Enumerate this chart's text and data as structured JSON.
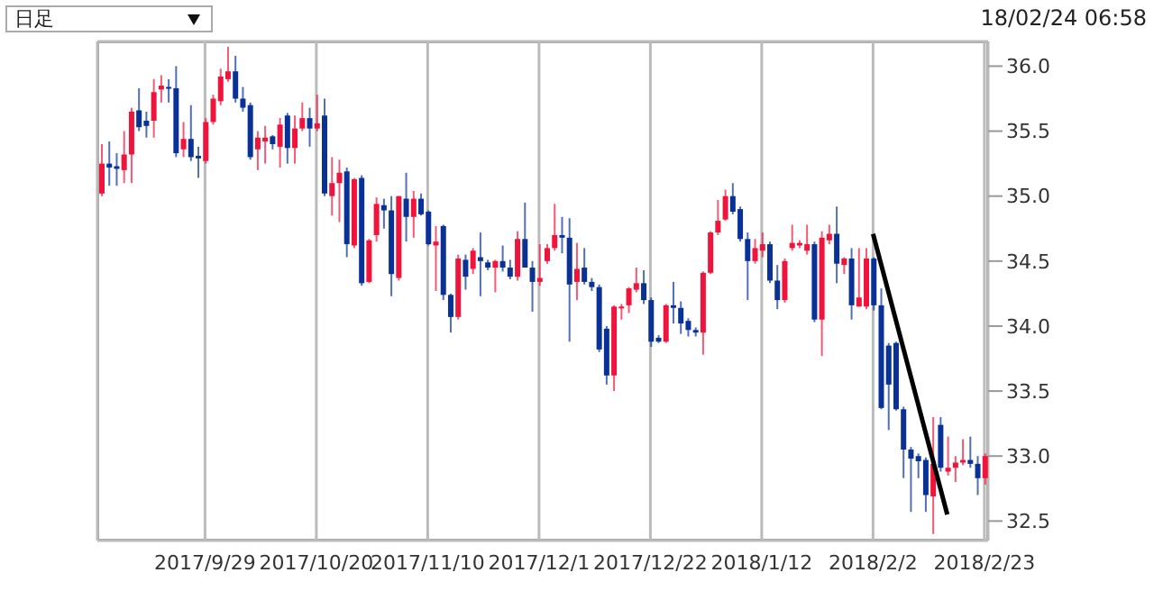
{
  "chart_data": {
    "type": "candlestick",
    "categories": [
      null,
      null,
      null,
      null,
      null,
      null,
      null,
      null,
      null,
      null,
      null,
      null,
      null,
      null,
      "2017/9/29",
      null,
      null,
      null,
      null,
      null,
      null,
      null,
      null,
      null,
      null,
      null,
      null,
      null,
      null,
      "2017/10/20",
      null,
      null,
      null,
      null,
      null,
      null,
      null,
      null,
      null,
      null,
      null,
      null,
      null,
      null,
      "2017/11/10",
      null,
      null,
      null,
      null,
      null,
      null,
      null,
      null,
      null,
      null,
      null,
      null,
      null,
      null,
      "2017/12/1",
      null,
      null,
      null,
      null,
      null,
      null,
      null,
      null,
      null,
      null,
      null,
      null,
      null,
      null,
      "2017/12/22",
      null,
      null,
      null,
      null,
      null,
      null,
      null,
      null,
      null,
      null,
      null,
      null,
      null,
      null,
      "2018/1/12",
      null,
      null,
      null,
      null,
      null,
      null,
      null,
      null,
      null,
      null,
      null,
      null,
      null,
      null,
      "2018/2/2",
      null,
      null,
      null,
      null,
      null,
      null,
      null,
      null,
      null,
      null,
      null,
      null,
      null,
      null,
      "2018/2/23"
    ],
    "ohlc": [
      [
        35.02,
        35.4,
        35.0,
        35.25
      ],
      [
        35.25,
        35.42,
        35.08,
        35.22
      ],
      [
        35.23,
        35.33,
        35.08,
        35.21
      ],
      [
        35.2,
        35.5,
        35.1,
        35.32
      ],
      [
        35.32,
        35.68,
        35.1,
        35.65
      ],
      [
        35.66,
        35.83,
        35.5,
        35.53
      ],
      [
        35.58,
        35.65,
        35.45,
        35.54
      ],
      [
        35.58,
        35.9,
        35.45,
        35.8
      ],
      [
        35.82,
        35.93,
        35.72,
        35.85
      ],
      [
        35.84,
        35.9,
        35.72,
        35.83
      ],
      [
        35.83,
        36.0,
        35.3,
        35.33
      ],
      [
        35.36,
        35.57,
        35.3,
        35.44
      ],
      [
        35.44,
        35.7,
        35.27,
        35.3
      ],
      [
        35.31,
        35.38,
        35.14,
        35.29
      ],
      [
        35.27,
        35.6,
        35.25,
        35.57
      ],
      [
        35.57,
        35.78,
        35.55,
        35.75
      ],
      [
        35.73,
        35.98,
        35.7,
        35.92
      ],
      [
        35.9,
        36.15,
        35.88,
        35.96
      ],
      [
        35.96,
        36.08,
        35.72,
        35.75
      ],
      [
        35.75,
        35.84,
        35.65,
        35.68
      ],
      [
        35.7,
        35.72,
        35.28,
        35.3
      ],
      [
        35.36,
        35.5,
        35.2,
        35.45
      ],
      [
        35.42,
        35.54,
        35.25,
        35.45
      ],
      [
        35.46,
        35.47,
        35.36,
        35.4
      ],
      [
        35.38,
        35.6,
        35.22,
        35.55
      ],
      [
        35.62,
        35.64,
        35.25,
        35.37
      ],
      [
        35.37,
        35.62,
        35.25,
        35.52
      ],
      [
        35.52,
        35.72,
        35.5,
        35.6
      ],
      [
        35.6,
        35.68,
        35.38,
        35.52
      ],
      [
        35.52,
        35.78,
        35.5,
        35.56
      ],
      [
        35.62,
        35.75,
        35.0,
        35.02
      ],
      [
        35.0,
        35.3,
        34.85,
        35.1
      ],
      [
        35.1,
        35.28,
        34.8,
        35.18
      ],
      [
        35.19,
        35.22,
        34.53,
        34.63
      ],
      [
        34.62,
        35.14,
        34.6,
        35.13
      ],
      [
        35.14,
        35.16,
        34.31,
        34.33
      ],
      [
        34.34,
        34.67,
        34.33,
        34.66
      ],
      [
        34.7,
        34.99,
        34.65,
        34.94
      ],
      [
        34.93,
        34.98,
        34.75,
        34.89
      ],
      [
        34.89,
        35.0,
        34.23,
        34.4
      ],
      [
        34.37,
        35.0,
        34.35,
        35.0
      ],
      [
        34.98,
        35.18,
        34.65,
        34.84
      ],
      [
        34.84,
        35.04,
        34.68,
        34.98
      ],
      [
        34.98,
        35.02,
        34.85,
        34.86
      ],
      [
        34.88,
        34.89,
        34.62,
        34.63
      ],
      [
        34.62,
        34.77,
        34.27,
        34.65
      ],
      [
        34.77,
        34.78,
        34.2,
        34.24
      ],
      [
        34.24,
        34.25,
        33.95,
        34.07
      ],
      [
        34.07,
        34.55,
        34.05,
        34.52
      ],
      [
        34.51,
        34.55,
        34.28,
        34.38
      ],
      [
        34.44,
        34.6,
        34.4,
        34.58
      ],
      [
        34.53,
        34.72,
        34.23,
        34.5
      ],
      [
        34.49,
        34.51,
        34.43,
        34.45
      ],
      [
        34.45,
        34.51,
        34.26,
        34.5
      ],
      [
        34.5,
        34.62,
        34.42,
        34.45
      ],
      [
        34.45,
        34.51,
        34.36,
        34.38
      ],
      [
        34.38,
        34.73,
        34.35,
        34.67
      ],
      [
        34.67,
        34.95,
        34.45,
        34.45
      ],
      [
        34.45,
        34.5,
        34.11,
        34.34
      ],
      [
        34.34,
        34.63,
        34.31,
        34.37
      ],
      [
        34.5,
        34.63,
        34.48,
        34.6
      ],
      [
        34.6,
        34.94,
        34.58,
        34.7
      ],
      [
        34.7,
        34.84,
        34.56,
        34.68
      ],
      [
        34.68,
        34.83,
        33.88,
        34.32
      ],
      [
        34.34,
        34.64,
        34.2,
        34.44
      ],
      [
        34.45,
        34.6,
        34.32,
        34.34
      ],
      [
        34.34,
        34.37,
        34.27,
        34.3
      ],
      [
        34.3,
        34.32,
        33.8,
        33.82
      ],
      [
        33.98,
        34.0,
        33.55,
        33.62
      ],
      [
        33.62,
        34.16,
        33.5,
        34.15
      ],
      [
        34.14,
        34.17,
        34.05,
        34.15
      ],
      [
        34.16,
        34.3,
        34.1,
        34.29
      ],
      [
        34.28,
        34.45,
        34.26,
        34.33
      ],
      [
        34.33,
        34.43,
        34.17,
        34.2
      ],
      [
        34.2,
        34.22,
        33.84,
        33.88
      ],
      [
        33.91,
        33.93,
        33.87,
        33.88
      ],
      [
        33.88,
        34.17,
        33.87,
        34.16
      ],
      [
        34.16,
        34.34,
        34.02,
        34.14
      ],
      [
        34.14,
        34.19,
        33.94,
        34.02
      ],
      [
        34.04,
        34.06,
        33.92,
        33.97
      ],
      [
        33.97,
        33.99,
        33.92,
        33.95
      ],
      [
        33.95,
        34.42,
        33.78,
        34.41
      ],
      [
        34.41,
        34.73,
        34.4,
        34.72
      ],
      [
        34.72,
        34.97,
        34.7,
        34.81
      ],
      [
        34.82,
        35.05,
        34.81,
        35.0
      ],
      [
        35.0,
        35.1,
        34.86,
        34.88
      ],
      [
        34.9,
        34.92,
        34.65,
        34.67
      ],
      [
        34.67,
        34.72,
        34.2,
        34.5
      ],
      [
        34.5,
        34.67,
        34.48,
        34.6
      ],
      [
        34.58,
        34.72,
        34.53,
        34.63
      ],
      [
        34.63,
        34.65,
        34.33,
        34.35
      ],
      [
        34.35,
        34.47,
        34.13,
        34.2
      ],
      [
        34.2,
        34.52,
        34.18,
        34.5
      ],
      [
        34.6,
        34.78,
        34.58,
        34.64
      ],
      [
        34.62,
        34.66,
        34.6,
        34.64
      ],
      [
        34.58,
        34.78,
        34.55,
        34.63
      ],
      [
        34.63,
        34.65,
        34.03,
        34.05
      ],
      [
        34.05,
        34.73,
        33.77,
        34.68
      ],
      [
        34.66,
        34.78,
        34.63,
        34.71
      ],
      [
        34.71,
        34.92,
        34.33,
        34.48
      ],
      [
        34.47,
        34.53,
        34.4,
        34.52
      ],
      [
        34.52,
        34.6,
        34.05,
        34.16
      ],
      [
        34.15,
        34.6,
        34.15,
        34.22
      ],
      [
        34.15,
        34.6,
        34.13,
        34.52
      ],
      [
        34.52,
        34.53,
        34.12,
        34.16
      ],
      [
        34.16,
        34.29,
        33.36,
        33.37
      ],
      [
        33.85,
        33.87,
        33.2,
        33.55
      ],
      [
        33.87,
        33.88,
        33.35,
        33.36
      ],
      [
        33.36,
        33.38,
        32.83,
        33.05
      ],
      [
        33.05,
        33.07,
        32.57,
        32.98
      ],
      [
        33.0,
        33.02,
        32.83,
        32.96
      ],
      [
        32.97,
        32.99,
        32.57,
        32.7
      ],
      [
        32.69,
        33.3,
        32.4,
        32.94
      ],
      [
        33.24,
        33.3,
        32.88,
        32.91
      ],
      [
        32.88,
        33.15,
        32.85,
        32.91
      ],
      [
        32.91,
        33.0,
        32.8,
        32.95
      ],
      [
        32.95,
        33.13,
        32.93,
        32.97
      ],
      [
        32.97,
        33.15,
        32.91,
        32.94
      ],
      [
        32.94,
        33.0,
        32.7,
        32.83
      ],
      [
        32.83,
        33.02,
        32.78,
        33.0
      ]
    ],
    "colors": [
      "#f0143c",
      "#0a3296",
      "#0a3296",
      "#f0143c",
      "#f0143c",
      "#0a3296",
      "#0a3296",
      "#f0143c",
      "#f0143c",
      "#0a3296",
      "#0a3296",
      "#f0143c",
      "#0a3296",
      "#0a3296",
      "#f0143c",
      "#f0143c",
      "#f0143c",
      "#f0143c",
      "#0a3296",
      "#0a3296",
      "#0a3296",
      "#f0143c",
      "#f0143c",
      "#0a3296",
      "#f0143c",
      "#0a3296",
      "#f0143c",
      "#f0143c",
      "#0a3296",
      "#f0143c",
      "#0a3296",
      "#f0143c",
      "#f0143c",
      "#0a3296",
      "#f0143c",
      "#0a3296",
      "#f0143c",
      "#f0143c",
      "#0a3296",
      "#0a3296",
      "#f0143c",
      "#0a3296",
      "#f0143c",
      "#0a3296",
      "#0a3296",
      "#f0143c",
      "#0a3296",
      "#0a3296",
      "#f0143c",
      "#0a3296",
      "#f0143c",
      "#0a3296",
      "#0a3296",
      "#f0143c",
      "#0a3296",
      "#0a3296",
      "#f0143c",
      "#0a3296",
      "#0a3296",
      "#f0143c",
      "#f0143c",
      "#f0143c",
      "#0a3296",
      "#0a3296",
      "#f0143c",
      "#0a3296",
      "#0a3296",
      "#0a3296",
      "#0a3296",
      "#f0143c",
      "#f0143c",
      "#f0143c",
      "#f0143c",
      "#0a3296",
      "#0a3296",
      "#0a3296",
      "#f0143c",
      "#0a3296",
      "#0a3296",
      "#0a3296",
      "#0a3296",
      "#f0143c",
      "#f0143c",
      "#f0143c",
      "#f0143c",
      "#0a3296",
      "#0a3296",
      "#0a3296",
      "#f0143c",
      "#f0143c",
      "#0a3296",
      "#0a3296",
      "#f0143c",
      "#f0143c",
      "#f0143c",
      "#f0143c",
      "#0a3296",
      "#f0143c",
      "#f0143c",
      "#0a3296",
      "#f0143c",
      "#0a3296",
      "#f0143c",
      "#f0143c",
      "#0a3296",
      "#0a3296",
      "#0a3296",
      "#0a3296",
      "#0a3296",
      "#0a3296",
      "#0a3296",
      "#0a3296",
      "#f0143c",
      "#0a3296",
      "#f0143c",
      "#f0143c",
      "#f0143c",
      "#0a3296",
      "#0a3296",
      "#f0143c"
    ],
    "series": [
      {
        "type": "line",
        "color": "#000000",
        "values": [
          null,
          null,
          null,
          null,
          null,
          null,
          null,
          null,
          null,
          null,
          null,
          null,
          null,
          null,
          null,
          null,
          null,
          null,
          null,
          null,
          null,
          null,
          null,
          null,
          null,
          null,
          null,
          null,
          null,
          null,
          null,
          null,
          null,
          null,
          null,
          null,
          null,
          null,
          null,
          null,
          null,
          null,
          null,
          null,
          null,
          null,
          null,
          null,
          null,
          null,
          null,
          null,
          null,
          null,
          null,
          null,
          null,
          null,
          null,
          null,
          null,
          null,
          null,
          null,
          null,
          null,
          null,
          null,
          null,
          null,
          null,
          null,
          null,
          null,
          null,
          null,
          null,
          null,
          null,
          null,
          null,
          null,
          null,
          null,
          null,
          null,
          null,
          null,
          null,
          null,
          null,
          null,
          null,
          null,
          null,
          null,
          null,
          null,
          null,
          null,
          null,
          null,
          null,
          null,
          34.71,
          null,
          null,
          null,
          null,
          null,
          null,
          null,
          null,
          null,
          32.55,
          null,
          null,
          null,
          null,
          null
        ]
      }
    ],
    "ylim": [
      32.35,
      36.19
    ],
    "yticks": [
      {
        "value": 32.5,
        "label": "32.5"
      },
      {
        "value": 33,
        "label": "33.0"
      },
      {
        "value": 33.5,
        "label": "33.5"
      },
      {
        "value": 34,
        "label": "34.0"
      },
      {
        "value": 34.5,
        "label": "34.5"
      },
      {
        "value": 35,
        "label": "35.0"
      },
      {
        "value": 35.5,
        "label": "35.5"
      },
      {
        "value": 36,
        "label": "36.0"
      }
    ],
    "grid": true,
    "annotations": [
      "日足",
      "18/02/24 06:58"
    ]
  }
}
